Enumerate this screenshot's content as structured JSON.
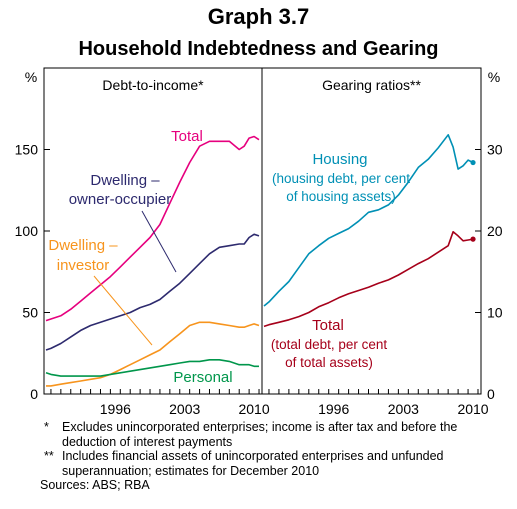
{
  "title": "Graph 3.7",
  "subtitle": "Household Indebtedness and Gearing",
  "chart_data": [
    {
      "type": "line",
      "panel_title": "Debt-to-income*",
      "ylabel": "%",
      "ylim": [
        0,
        200
      ],
      "yticks": [
        0,
        50,
        100,
        150
      ],
      "xlim": [
        1989.3,
        2011.3
      ],
      "xticks": [
        1996,
        2003,
        2010
      ],
      "grid": false,
      "series": [
        {
          "name": "Total",
          "color": "#e6007e",
          "x": [
            1989.5,
            1990,
            1991,
            1992,
            1993,
            1994,
            1995,
            1996,
            1997,
            1998,
            1999,
            2000,
            2001,
            2002,
            2003,
            2004,
            2005,
            2006,
            2007,
            2008,
            2009,
            2009.5,
            2010,
            2010.5,
            2011
          ],
          "y": [
            45,
            46,
            48,
            52,
            57,
            62,
            67,
            72,
            78,
            84,
            90,
            96,
            104,
            117,
            130,
            142,
            152,
            155,
            155,
            155,
            150,
            152,
            157,
            158,
            156
          ]
        },
        {
          "name": "Dwelling – owner-occupier",
          "color": "#2d2a6e",
          "x": [
            1989.5,
            1990,
            1991,
            1992,
            1993,
            1994,
            1995,
            1996,
            1997,
            1998,
            1999,
            2000,
            2001,
            2002,
            2003,
            2004,
            2005,
            2006,
            2007,
            2008,
            2009,
            2009.5,
            2010,
            2010.5,
            2011
          ],
          "y": [
            27,
            28,
            31,
            35,
            39,
            42,
            44,
            46,
            48,
            50,
            53,
            55,
            58,
            63,
            68,
            74,
            80,
            86,
            90,
            91,
            92,
            92,
            96,
            98,
            97
          ]
        },
        {
          "name": "Dwelling – investor",
          "color": "#f7941d",
          "x": [
            1989.5,
            1990,
            1991,
            1992,
            1993,
            1994,
            1995,
            1996,
            1997,
            1998,
            1999,
            2000,
            2001,
            2002,
            2003,
            2004,
            2005,
            2006,
            2007,
            2008,
            2009,
            2009.5,
            2010,
            2010.5,
            2011
          ],
          "y": [
            5,
            5,
            6,
            7,
            8,
            9,
            10,
            12,
            15,
            18,
            21,
            24,
            27,
            32,
            37,
            42,
            44,
            44,
            43,
            42,
            41,
            41,
            42,
            43,
            42
          ]
        },
        {
          "name": "Personal",
          "color": "#00964b",
          "x": [
            1989.5,
            1990,
            1991,
            1992,
            1993,
            1994,
            1995,
            1996,
            1997,
            1998,
            1999,
            2000,
            2001,
            2002,
            2003,
            2004,
            2005,
            2006,
            2007,
            2008,
            2009,
            2009.5,
            2010,
            2010.5,
            2011
          ],
          "y": [
            13,
            12,
            11,
            11,
            11,
            11,
            11,
            12,
            13,
            14,
            15,
            16,
            17,
            18,
            19,
            20,
            20,
            21,
            21,
            20,
            18,
            18,
            18,
            17,
            17
          ]
        }
      ],
      "labels": {
        "total": "Total",
        "owner_1": "Dwelling –",
        "owner_2": "owner-occupier",
        "investor_1": "Dwelling –",
        "investor_2": "investor",
        "personal": "Personal"
      }
    },
    {
      "type": "line",
      "panel_title": "Gearing ratios**",
      "ylabel": "%",
      "ylim": [
        0,
        40
      ],
      "yticks": [
        0,
        10,
        20,
        30
      ],
      "xlim": [
        1989.3,
        2011.3
      ],
      "xticks": [
        1996,
        2003,
        2010
      ],
      "grid": false,
      "series": [
        {
          "name": "Housing",
          "color": "#0090b5",
          "x": [
            1989.5,
            1990,
            1991,
            1992,
            1993,
            1994,
            1995,
            1996,
            1997,
            1998,
            1999,
            2000,
            2001,
            2002,
            2003,
            2004,
            2005,
            2006,
            2007,
            2008,
            2008.5,
            2009,
            2009.5,
            2010,
            2010.5
          ],
          "y": [
            10.8,
            11.3,
            12.6,
            13.8,
            15.5,
            17.2,
            18.2,
            19.1,
            19.7,
            20.3,
            21.2,
            22.3,
            22.6,
            23.2,
            24.4,
            26.0,
            27.8,
            28.8,
            30.2,
            31.8,
            30.3,
            27.6,
            28.0,
            28.7,
            28.4
          ]
        },
        {
          "name": "Total",
          "color": "#a6001a",
          "x": [
            1989.5,
            1990,
            1991,
            1992,
            1993,
            1994,
            1995,
            1996,
            1997,
            1998,
            1999,
            2000,
            2001,
            2002,
            2003,
            2004,
            2005,
            2006,
            2007,
            2008,
            2008.5,
            2009,
            2009.5,
            2010,
            2010.5
          ],
          "y": [
            8.3,
            8.5,
            8.8,
            9.1,
            9.5,
            10.0,
            10.7,
            11.2,
            11.8,
            12.3,
            12.7,
            13.1,
            13.6,
            14.0,
            14.6,
            15.3,
            16.0,
            16.6,
            17.4,
            18.2,
            19.9,
            19.4,
            18.8,
            18.9,
            19.0
          ]
        }
      ],
      "labels": {
        "housing_1": "Housing",
        "housing_2": "(housing debt, per cent",
        "housing_3": "of housing assets)",
        "total_1": "Total",
        "total_2": "(total debt, per cent",
        "total_3": "of total assets)"
      }
    }
  ],
  "notes": [
    {
      "mark": "*",
      "text": "Excludes unincorporated enterprises; income is after tax and before the deduction of interest payments"
    },
    {
      "mark": "**",
      "text": "Includes financial assets of unincorporated enterprises and unfunded superannuation; estimates for December 2010"
    }
  ],
  "sources": "Sources: ABS; RBA"
}
